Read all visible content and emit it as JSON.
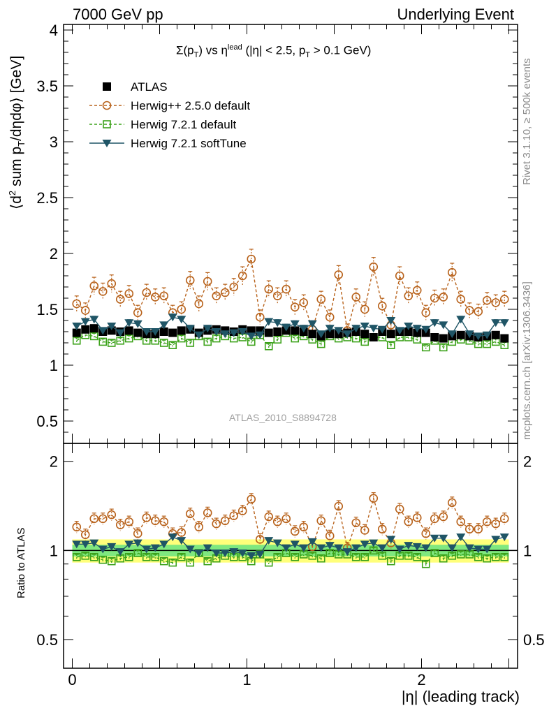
{
  "header": {
    "left": "7000 GeV pp",
    "right": "Underlying Event"
  },
  "side_text": {
    "rivet": "Rivet 3.1.10, ≥ 500k events",
    "source": "mcplots.cern.ch [arXiv:1306.3436]"
  },
  "colors": {
    "atlas": "#000000",
    "herwigpp": "#b8621b",
    "herwig721": "#3ca21a",
    "softtune": "#1f5566",
    "band_outer": "#ffff7a",
    "band_inner": "#7fe87f"
  },
  "chart_data": [
    {
      "type": "scatter",
      "title": "Σ(p_T) vs η^lead (|η| < 2.5, p_T > 0.1 GeV)",
      "title_parts": {
        "sigma": "Σ(p",
        "sub_t": "T",
        "vs": ") vs η",
        "sup_lead": "lead",
        "cut": " (|η| < 2.5, p",
        "sub_t2": "T",
        "tail": " > 0.1 GeV)"
      },
      "ylabel": "⟨d² sum p_T/dηdφ⟩ [GeV]",
      "ylabel_parts": {
        "pre": "⟨d",
        "sup2": "2",
        "mid": " sum p",
        "subT": "T",
        "post": "/dηdφ⟩ [GeV]"
      },
      "watermark": "ATLAS_2010_S8894728",
      "xlim": [
        -0.05,
        2.55
      ],
      "ylim": [
        0.3,
        4.05
      ],
      "yticks": [
        0.5,
        1,
        1.5,
        2,
        2.5,
        3,
        3.5,
        4
      ],
      "ytick_labels": [
        "0.5",
        "1",
        "1.5",
        "2",
        "2.5",
        "3",
        "3.5",
        "4"
      ],
      "legend": [
        {
          "name": "ATLAS",
          "marker": "square-filled"
        },
        {
          "name": "Herwig++ 2.5.0 default",
          "marker": "circle-open"
        },
        {
          "name": "Herwig 7.2.1 default",
          "marker": "square-open"
        },
        {
          "name": "Herwig 7.2.1 softTune",
          "marker": "triangle-down"
        }
      ],
      "x": [
        0.025,
        0.075,
        0.125,
        0.175,
        0.225,
        0.275,
        0.325,
        0.375,
        0.425,
        0.475,
        0.525,
        0.575,
        0.625,
        0.675,
        0.725,
        0.775,
        0.825,
        0.875,
        0.925,
        0.975,
        1.025,
        1.075,
        1.125,
        1.175,
        1.225,
        1.275,
        1.325,
        1.375,
        1.425,
        1.475,
        1.525,
        1.575,
        1.625,
        1.675,
        1.725,
        1.775,
        1.825,
        1.875,
        1.925,
        1.975,
        2.025,
        2.075,
        2.125,
        2.175,
        2.225,
        2.275,
        2.325,
        2.375,
        2.425,
        2.475
      ],
      "series": [
        {
          "name": "ATLAS",
          "values": [
            1.29,
            1.32,
            1.33,
            1.3,
            1.31,
            1.3,
            1.31,
            1.29,
            1.28,
            1.28,
            1.3,
            1.29,
            1.31,
            1.32,
            1.29,
            1.31,
            1.32,
            1.31,
            1.3,
            1.32,
            1.31,
            1.31,
            1.29,
            1.3,
            1.31,
            1.31,
            1.3,
            1.28,
            1.26,
            1.28,
            1.28,
            1.29,
            1.3,
            1.28,
            1.25,
            1.3,
            1.28,
            1.3,
            1.3,
            1.29,
            1.29,
            1.25,
            1.24,
            1.26,
            1.27,
            1.26,
            1.25,
            1.26,
            1.27,
            1.24
          ]
        },
        {
          "name": "Herwig++ 2.5.0 default",
          "values": [
            1.55,
            1.49,
            1.71,
            1.66,
            1.73,
            1.59,
            1.64,
            1.47,
            1.65,
            1.61,
            1.62,
            1.47,
            1.5,
            1.76,
            1.55,
            1.75,
            1.62,
            1.65,
            1.7,
            1.8,
            1.95,
            1.43,
            1.68,
            1.62,
            1.68,
            1.52,
            1.56,
            1.32,
            1.59,
            1.43,
            1.81,
            1.31,
            1.61,
            1.5,
            1.88,
            1.53,
            1.36,
            1.8,
            1.62,
            1.67,
            1.47,
            1.6,
            1.61,
            1.83,
            1.59,
            1.49,
            1.48,
            1.58,
            1.56,
            1.59
          ]
        },
        {
          "name": "Herwig 7.2.1 default",
          "values": [
            1.22,
            1.27,
            1.26,
            1.21,
            1.2,
            1.22,
            1.24,
            1.26,
            1.22,
            1.22,
            1.2,
            1.18,
            1.24,
            1.2,
            1.26,
            1.21,
            1.24,
            1.26,
            1.24,
            1.25,
            1.21,
            1.27,
            1.17,
            1.23,
            1.29,
            1.24,
            1.26,
            1.23,
            1.19,
            1.26,
            1.24,
            1.25,
            1.24,
            1.21,
            1.25,
            1.25,
            1.18,
            1.25,
            1.25,
            1.23,
            1.16,
            1.22,
            1.16,
            1.21,
            1.23,
            1.22,
            1.19,
            1.19,
            1.21,
            1.18
          ]
        },
        {
          "name": "Herwig 7.2.1 softTune",
          "values": [
            1.35,
            1.39,
            1.41,
            1.31,
            1.35,
            1.29,
            1.38,
            1.37,
            1.3,
            1.3,
            1.36,
            1.43,
            1.41,
            1.33,
            1.27,
            1.33,
            1.3,
            1.28,
            1.29,
            1.3,
            1.26,
            1.27,
            1.39,
            1.38,
            1.34,
            1.37,
            1.33,
            1.37,
            1.28,
            1.33,
            1.31,
            1.28,
            1.33,
            1.35,
            1.33,
            1.32,
            1.4,
            1.31,
            1.35,
            1.33,
            1.32,
            1.38,
            1.36,
            1.28,
            1.41,
            1.28,
            1.26,
            1.27,
            1.38,
            1.38
          ]
        }
      ]
    },
    {
      "type": "scatter",
      "title": "",
      "ylabel": "Ratio to ATLAS",
      "xlabel": "|η| (leading track)",
      "xlim": [
        -0.05,
        2.55
      ],
      "ylim": [
        0.4,
        2.3
      ],
      "xticks": [
        0,
        1,
        2
      ],
      "xtick_labels": [
        "0",
        "1",
        "2"
      ],
      "yticks": [
        0.5,
        1,
        2
      ],
      "ytick_labels": [
        "0.5",
        "1",
        "2"
      ],
      "band_outer_halfwidth": 0.09,
      "band_inner_halfwidth": 0.045,
      "series": [
        {
          "name": "Herwig++ 2.5.0 default",
          "values": [
            1.2,
            1.13,
            1.28,
            1.28,
            1.32,
            1.22,
            1.25,
            1.14,
            1.29,
            1.26,
            1.25,
            1.14,
            1.15,
            1.33,
            1.2,
            1.34,
            1.23,
            1.26,
            1.31,
            1.36,
            1.49,
            1.09,
            1.3,
            1.25,
            1.28,
            1.16,
            1.2,
            1.03,
            1.26,
            1.12,
            1.41,
            1.02,
            1.24,
            1.17,
            1.5,
            1.18,
            1.06,
            1.38,
            1.25,
            1.29,
            1.14,
            1.28,
            1.3,
            1.45,
            1.25,
            1.18,
            1.18,
            1.25,
            1.23,
            1.28
          ]
        },
        {
          "name": "Herwig 7.2.1 default",
          "values": [
            0.95,
            0.96,
            0.95,
            0.93,
            0.92,
            0.94,
            0.95,
            0.98,
            0.95,
            0.95,
            0.92,
            0.91,
            0.95,
            0.91,
            0.98,
            0.92,
            0.94,
            0.96,
            0.95,
            0.95,
            0.92,
            0.97,
            0.91,
            0.95,
            0.98,
            0.95,
            0.97,
            0.96,
            0.94,
            0.98,
            0.97,
            0.97,
            0.95,
            0.95,
            1.0,
            0.96,
            0.92,
            0.96,
            0.96,
            0.95,
            0.9,
            0.98,
            0.94,
            0.96,
            0.97,
            0.97,
            0.95,
            0.94,
            0.95,
            0.95
          ]
        },
        {
          "name": "Herwig 7.2.1 softTune",
          "values": [
            1.05,
            1.05,
            1.06,
            1.01,
            1.03,
            0.99,
            1.05,
            1.06,
            1.01,
            1.02,
            1.05,
            1.11,
            1.08,
            1.01,
            0.98,
            1.02,
            0.98,
            0.98,
            0.99,
            0.98,
            0.96,
            0.97,
            1.08,
            1.06,
            1.02,
            1.05,
            1.02,
            1.07,
            1.02,
            1.04,
            1.02,
            0.99,
            1.02,
            1.05,
            1.06,
            1.02,
            1.09,
            1.01,
            1.04,
            1.03,
            1.02,
            1.1,
            1.1,
            1.02,
            1.11,
            1.02,
            1.01,
            1.01,
            1.09,
            1.11
          ]
        }
      ]
    }
  ]
}
